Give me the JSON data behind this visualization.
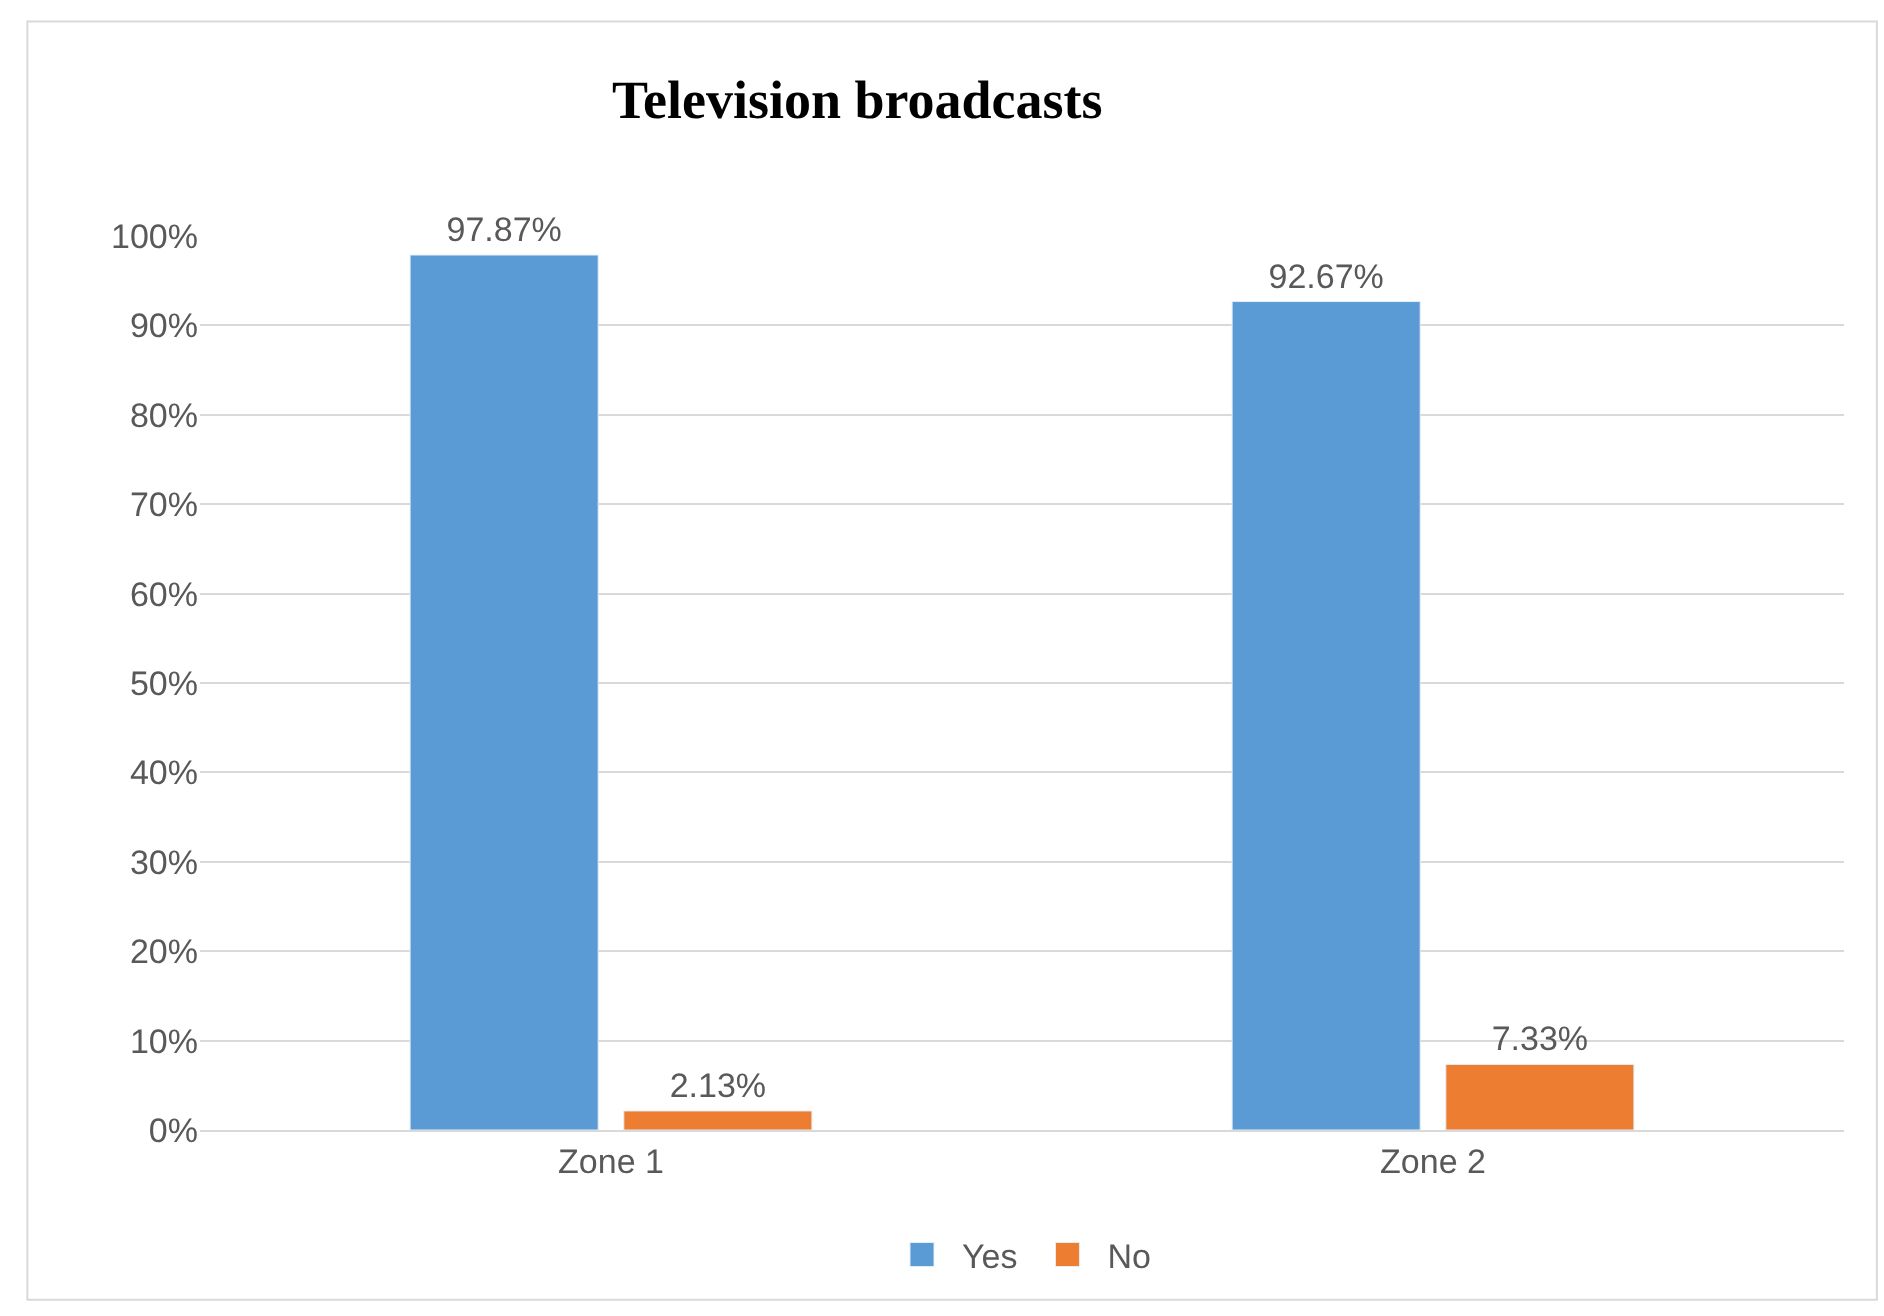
{
  "chart_data": {
    "type": "bar",
    "title": "Television broadcasts",
    "categories": [
      "Zone 1",
      "Zone 2"
    ],
    "series": [
      {
        "name": "Yes",
        "color": "#5b9bd5",
        "values": [
          97.87,
          92.67
        ],
        "value_labels": [
          "97.87%",
          "92.67%"
        ]
      },
      {
        "name": "No",
        "color": "#ed7d31",
        "values": [
          2.13,
          7.33
        ],
        "value_labels": [
          "2.13%",
          "7.33%"
        ]
      }
    ],
    "ylim": [
      0,
      100
    ],
    "yticks": [
      {
        "value": 0,
        "label": "0%"
      },
      {
        "value": 10,
        "label": "10%"
      },
      {
        "value": 20,
        "label": "20%"
      },
      {
        "value": 30,
        "label": "30%"
      },
      {
        "value": 40,
        "label": "40%"
      },
      {
        "value": 50,
        "label": "50%"
      },
      {
        "value": 60,
        "label": "60%"
      },
      {
        "value": 70,
        "label": "70%"
      },
      {
        "value": 80,
        "label": "80%"
      },
      {
        "value": 90,
        "label": "90%"
      },
      {
        "value": 100,
        "label": "100%"
      }
    ],
    "grid": "y",
    "legend": "bottom"
  }
}
